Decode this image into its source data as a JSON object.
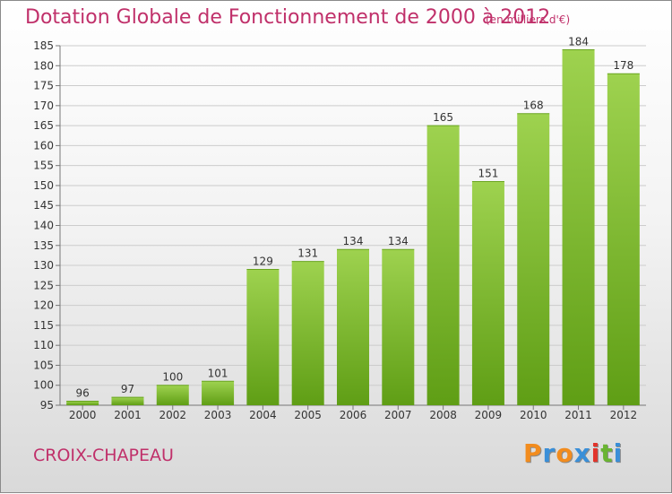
{
  "title": "Dotation Globale de Fonctionnement de 2000 à 2012",
  "subtitle": "(en milliers d'€)",
  "commune": "CROIX-CHAPEAU",
  "logo": {
    "text": "Proxiti",
    "colors": [
      "#f28c1e",
      "#3a8fd8",
      "#f28c1e",
      "#3a8fd8",
      "#e2342b",
      "#6ab432",
      "#3a8fd8"
    ]
  },
  "colors": {
    "accent": "#c0306a",
    "bar_light": "#9ed24f",
    "bar_dark": "#5f9e15"
  },
  "chart_data": {
    "type": "bar",
    "categories": [
      "2000",
      "2001",
      "2002",
      "2003",
      "2004",
      "2005",
      "2006",
      "2007",
      "2008",
      "2009",
      "2010",
      "2011",
      "2012"
    ],
    "values": [
      96,
      97,
      100,
      101,
      129,
      131,
      134,
      134,
      165,
      151,
      168,
      184,
      178
    ],
    "ylim": [
      95,
      185
    ],
    "yticks": [
      95,
      100,
      105,
      110,
      115,
      120,
      125,
      130,
      135,
      140,
      145,
      150,
      155,
      160,
      165,
      170,
      175,
      180,
      185
    ],
    "grid": true
  }
}
